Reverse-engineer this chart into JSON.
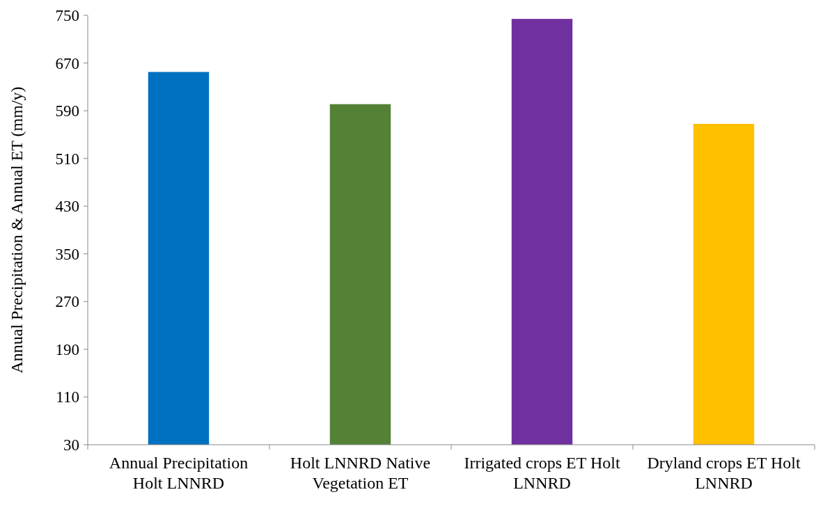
{
  "chart_data": {
    "type": "bar",
    "ylabel": "Annual Precipitation & Annual ET (mm/y)",
    "categories": [
      "Annual Precipitation Holt LNNRD",
      "Holt LNNRD Native Vegetation ET",
      "Irrigated crops ET Holt LNNRD",
      "Dryland crops ET Holt LNNRD"
    ],
    "values": [
      655,
      601,
      744,
      568
    ],
    "colors": [
      "#0070c0",
      "#538135",
      "#7030a0",
      "#ffc000"
    ],
    "ylim": [
      30,
      750
    ],
    "yticks": [
      30,
      110,
      190,
      270,
      350,
      430,
      510,
      590,
      670,
      750
    ],
    "grid": false
  }
}
